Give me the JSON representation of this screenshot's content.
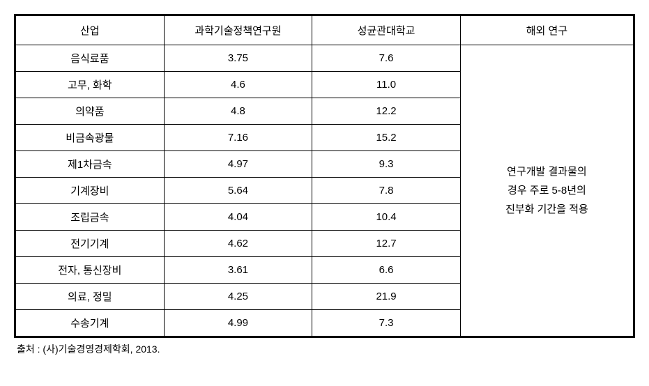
{
  "table": {
    "headers": {
      "industry": "산업",
      "stepi": "과학기술정책연구원",
      "skku": "성균관대학교",
      "overseas": "해외 연구"
    },
    "rows": [
      {
        "industry": "음식료품",
        "stepi": "3.75",
        "skku": "7.6"
      },
      {
        "industry": "고무, 화학",
        "stepi": "4.6",
        "skku": "11.0"
      },
      {
        "industry": "의약품",
        "stepi": "4.8",
        "skku": "12.2"
      },
      {
        "industry": "비금속광물",
        "stepi": "7.16",
        "skku": "15.2"
      },
      {
        "industry": "제1차금속",
        "stepi": "4.97",
        "skku": "9.3"
      },
      {
        "industry": "기계장비",
        "stepi": "5.64",
        "skku": "7.8"
      },
      {
        "industry": "조립금속",
        "stepi": "4.04",
        "skku": "10.4"
      },
      {
        "industry": "전기기계",
        "stepi": "4.62",
        "skku": "12.7"
      },
      {
        "industry": "전자, 통신장비",
        "stepi": "3.61",
        "skku": "6.6"
      },
      {
        "industry": "의료, 정밀",
        "stepi": "4.25",
        "skku": "21.9"
      },
      {
        "industry": "수송기계",
        "stepi": "4.99",
        "skku": "7.3"
      }
    ],
    "overseas_note_line1": "연구개발 결과물의",
    "overseas_note_line2": "경우 주로 5-8년의",
    "overseas_note_line3": "진부화 기간을 적용",
    "column_widths": {
      "industry": "24%",
      "stepi": "24%",
      "skku": "24%",
      "overseas": "28%"
    },
    "styling": {
      "outer_border_width": 2,
      "inner_border_width": 1,
      "border_color": "#000000",
      "background_color": "#ffffff",
      "font_size": 15,
      "header_padding": 10,
      "cell_padding": 8
    }
  },
  "source": "출처 : (사)기술경영경제학회, 2013."
}
